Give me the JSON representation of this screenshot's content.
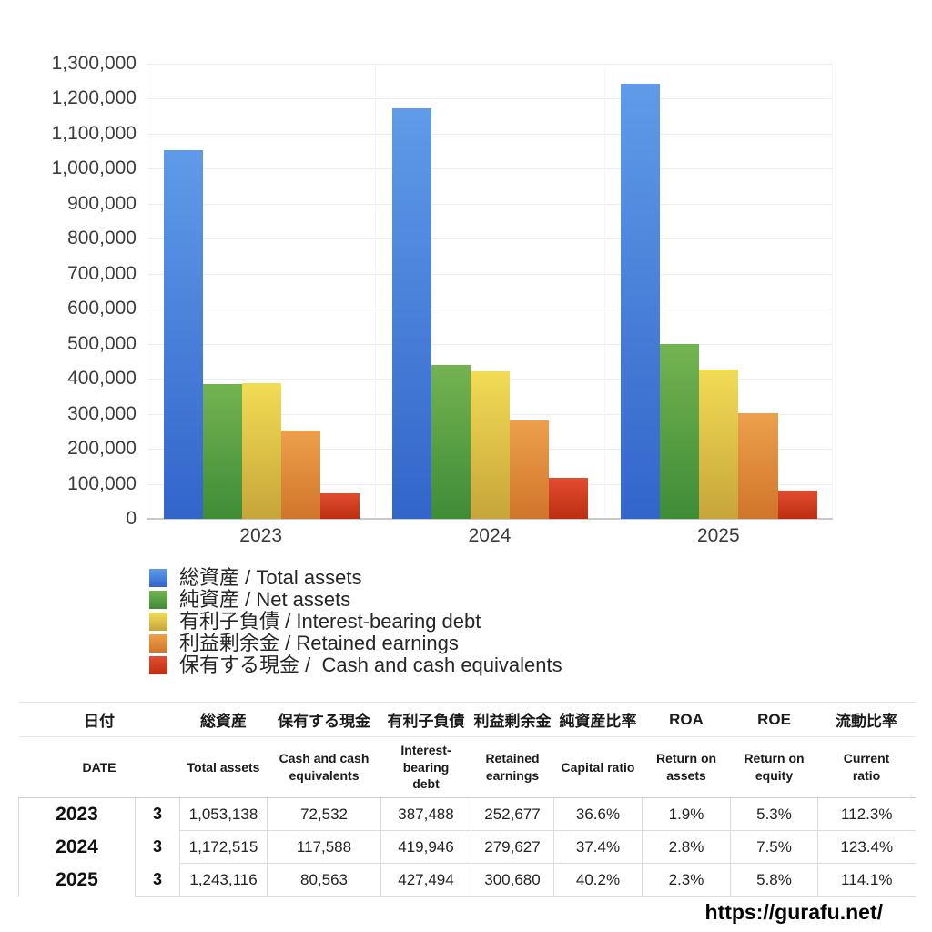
{
  "chart_data": {
    "type": "bar",
    "title": "",
    "categories": [
      "2023",
      "2024",
      "2025"
    ],
    "series": [
      {
        "name": "総資産 / Total assets",
        "color": {
          "top": "#5F9BE8",
          "bottom": "#3365CA"
        },
        "values": [
          1053138,
          1172515,
          1243116
        ]
      },
      {
        "name": "純資産 / Net assets",
        "color": {
          "top": "#74B351",
          "bottom": "#3F8C37"
        },
        "values": [
          385448,
          438521,
          499733
        ]
      },
      {
        "name": "有利子負債 / Interest-bearing debt",
        "color": {
          "top": "#F2DC55",
          "bottom": "#C6A53A"
        },
        "values": [
          387488,
          419946,
          427494
        ]
      },
      {
        "name": "利益剰余金 / Retained earnings",
        "color": {
          "top": "#EDA04B",
          "bottom": "#D0752A"
        },
        "values": [
          252677,
          279627,
          300680
        ]
      },
      {
        "name": "保有する現金 /  Cash and cash equivalents",
        "color": {
          "top": "#E24D31",
          "bottom": "#BD2E11"
        },
        "values": [
          72532,
          117588,
          80563
        ]
      }
    ],
    "xlabel": "",
    "ylabel": "",
    "ylim": [
      0,
      1300000
    ],
    "ytick_step": 100000,
    "y_tick_labels": [
      "0",
      "100,000",
      "200,000",
      "300,000",
      "400,000",
      "500,000",
      "600,000",
      "700,000",
      "800,000",
      "900,000",
      "1,000,000",
      "1,100,000",
      "1,200,000",
      "1,300,000"
    ],
    "grid": true,
    "legend_position": "bottom-left"
  },
  "table": {
    "headers_jp": [
      "日付",
      "総資産",
      "保有する現金",
      "有利子負債",
      "利益剰余金",
      "純資産比率",
      "ROA",
      "ROE",
      "流動比率"
    ],
    "headers_en": [
      [
        "DATE"
      ],
      [
        "Total assets"
      ],
      [
        "Cash and cash",
        "equivalents"
      ],
      [
        "Interest-",
        "bearing",
        "debt"
      ],
      [
        "Retained",
        "earnings"
      ],
      [
        "Capital ratio"
      ],
      [
        "Return on",
        "assets"
      ],
      [
        "Return on",
        "equity"
      ],
      [
        "Current",
        "ratio"
      ]
    ],
    "rows": [
      {
        "year": "2023",
        "month": "3",
        "values": [
          "1,053,138",
          "72,532",
          "387,488",
          "252,677",
          "36.6%",
          "1.9%",
          "5.3%",
          "112.3%"
        ]
      },
      {
        "year": "2024",
        "month": "3",
        "values": [
          "1,172,515",
          "117,588",
          "419,946",
          "279,627",
          "37.4%",
          "2.8%",
          "7.5%",
          "123.4%"
        ]
      },
      {
        "year": "2025",
        "month": "3",
        "values": [
          "1,243,116",
          "80,563",
          "427,494",
          "300,680",
          "40.2%",
          "2.3%",
          "5.8%",
          "114.1%"
        ]
      }
    ]
  },
  "footer": {
    "url": "https://gurafu.net/"
  },
  "colors": {
    "gridline": "#ededed",
    "baseline": "#c9c9c9",
    "axis_text": "#3c3c3c",
    "table_border": "#dcdcdc"
  }
}
